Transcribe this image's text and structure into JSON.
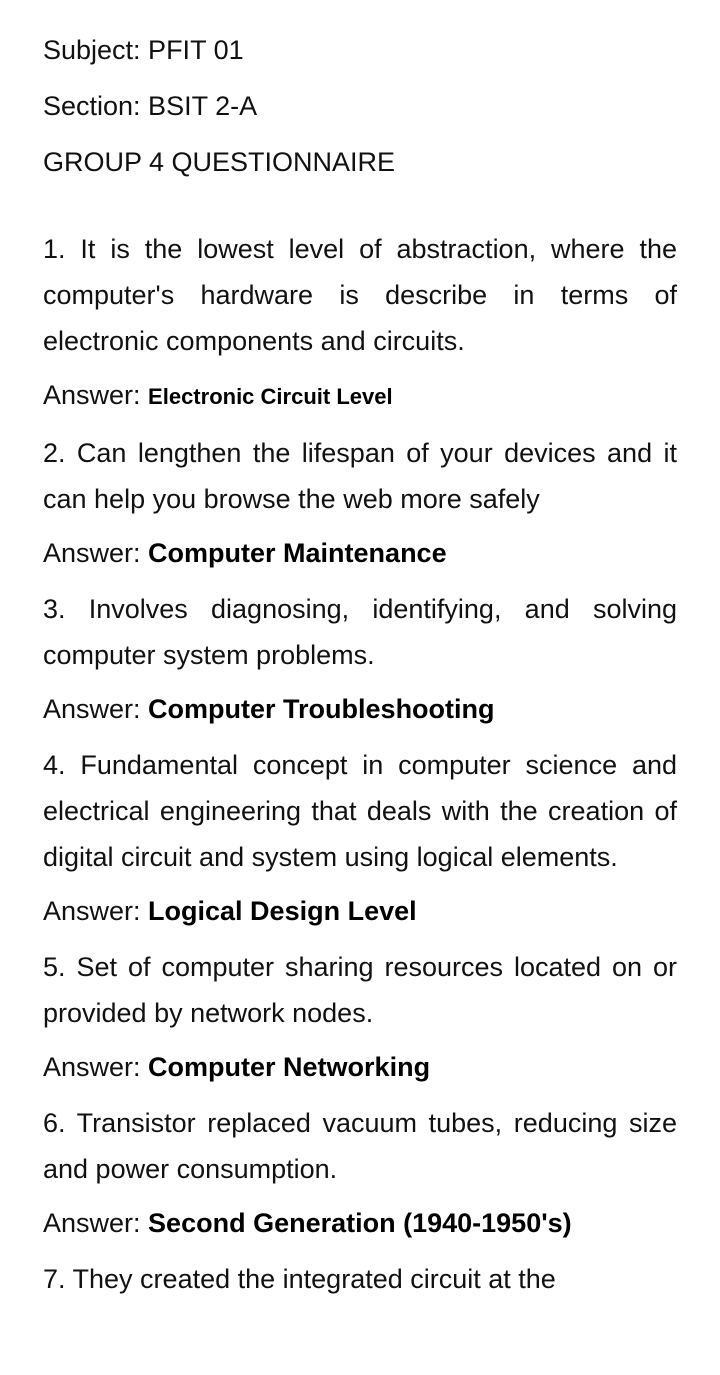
{
  "header": {
    "subject": "Subject: PFIT 01",
    "section": "Section: BSIT 2-A",
    "title": "GROUP 4 QUESTIONNAIRE"
  },
  "answer_label": "Answer: ",
  "questions": [
    {
      "text": "1. It is the lowest level of abstraction, where the computer's hardware is describe in terms of electronic components and circuits.",
      "answer": "Electronic Circuit Level"
    },
    {
      "text": "2. Can lengthen the lifespan of your devices and it can help you browse the web more safely",
      "answer": "Computer Maintenance"
    },
    {
      "text": "3. Involves diagnosing, identifying, and solving computer system problems.",
      "answer": "Computer Troubleshooting"
    },
    {
      "text": "4. Fundamental concept in computer science and electrical engineering that deals with the creation of digital circuit and system using logical elements.",
      "answer": "Logical Design Level"
    },
    {
      "text": "5. Set of computer sharing resources located on or provided by network nodes.",
      "answer": "Computer Networking"
    },
    {
      "text": "6. Transistor replaced vacuum tubes, reducing size and power consumption.",
      "answer": "Second Generation (1940-1950's)"
    },
    {
      "text": "7. They created the integrated circuit at the"
    }
  ]
}
